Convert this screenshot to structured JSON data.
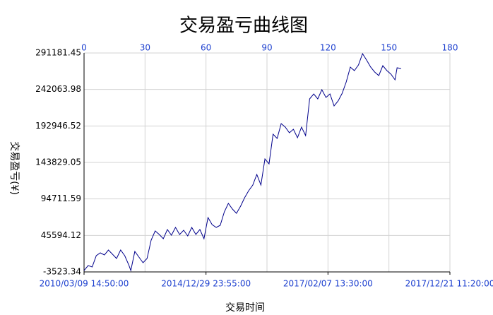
{
  "chart_data": {
    "type": "line",
    "title": "交易盈亏曲线图",
    "x_label": "交易时间",
    "y_label": "交易盈亏(¥)",
    "x": [
      0,
      2,
      4,
      6,
      8,
      10,
      12,
      14,
      16,
      18,
      20,
      22,
      23,
      25,
      27,
      29,
      31,
      33,
      35,
      37,
      39,
      41,
      43,
      45,
      47,
      49,
      51,
      53,
      55,
      57,
      59,
      61,
      63,
      65,
      67,
      69,
      71,
      73,
      75,
      77,
      79,
      81,
      83,
      85,
      87,
      89,
      91,
      93,
      95,
      97,
      99,
      101,
      103,
      105,
      107,
      109,
      111,
      113,
      115,
      117,
      119,
      121,
      123,
      125,
      127,
      129,
      131,
      133,
      135,
      137,
      139,
      141,
      143,
      145,
      147,
      149,
      151,
      153,
      154,
      156
    ],
    "series": [
      {
        "color": "#00008b",
        "values": [
          -1622,
          5033,
          3131,
          18342,
          22145,
          19293,
          25947,
          20243,
          14539,
          25947,
          18342,
          5983,
          -1622,
          24046,
          16441,
          8835,
          14539,
          39256,
          51615,
          46862,
          41157,
          53516,
          45911,
          56368,
          46862,
          52566,
          44960,
          56368,
          46862,
          53516,
          41157,
          69678,
          60171,
          56368,
          59220,
          77283,
          88691,
          81085,
          75382,
          84888,
          96296,
          105803,
          113408,
          127668,
          113408,
          148583,
          141928,
          181856,
          176152,
          196116,
          191362,
          183757,
          188510,
          177102,
          191362,
          179954,
          229389,
          236043,
          229389,
          241747,
          231290,
          236043,
          219882,
          226537,
          236994,
          252205,
          272168,
          267415,
          275020,
          290231,
          281675,
          272168,
          265514,
          260760,
          274070,
          267415,
          262662,
          255057,
          271218,
          270267
        ]
      }
    ],
    "xlim": [
      0,
      180
    ],
    "xticks": [
      0,
      30,
      60,
      90,
      120,
      150,
      180
    ],
    "date_ticks": [
      {
        "value": 0,
        "label": "2010/03/09 14:50:00"
      },
      {
        "value": 60,
        "label": "2014/12/29 23:55:00"
      },
      {
        "value": 120,
        "label": "2017/02/07 13:30:00"
      },
      {
        "value": 180,
        "label": "2017/12/21 11:20:00"
      }
    ],
    "ylim": [
      -3523.34,
      291181.45
    ],
    "yticks": [
      -3523.34,
      45594.12,
      94711.59,
      143829.05,
      192946.52,
      242063.98,
      291181.45
    ],
    "grid": true,
    "tick_color": "#1c3fcf"
  }
}
